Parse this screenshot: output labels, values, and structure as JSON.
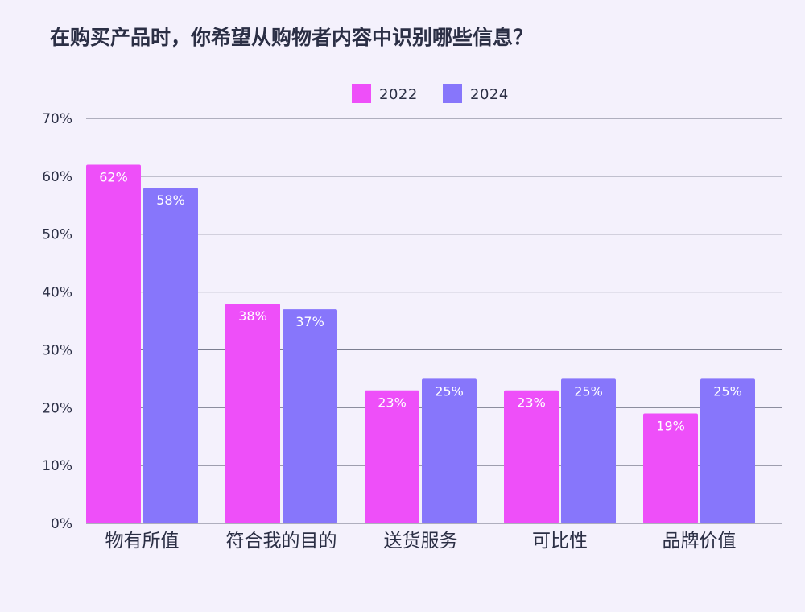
{
  "chart_data": {
    "type": "bar",
    "title": "在购买产品时，你希望从购物者内容中识别哪些信息？",
    "categories": [
      "物有所值",
      "符合我的目的",
      "送货服务",
      "可比性",
      "品牌价值"
    ],
    "series": [
      {
        "name": "2022",
        "color": "#ee4ff9",
        "values": [
          62,
          38,
          23,
          23,
          19
        ],
        "labels": [
          "62%",
          "38%",
          "23%",
          "23%",
          "19%"
        ]
      },
      {
        "name": "2024",
        "color": "#8776fb",
        "values": [
          58,
          37,
          25,
          25,
          25
        ],
        "labels": [
          "58%",
          "37%",
          "25%",
          "25%",
          "25%"
        ]
      }
    ],
    "ylim": [
      0,
      70
    ],
    "yticks": [
      "0%",
      "10%",
      "20%",
      "30%",
      "40%",
      "50%",
      "60%",
      "70%"
    ],
    "ytick_values": [
      0,
      10,
      20,
      30,
      40,
      50,
      60,
      70
    ],
    "xlabel": "",
    "ylabel": "",
    "grid": true,
    "legend_position": "top-center"
  }
}
